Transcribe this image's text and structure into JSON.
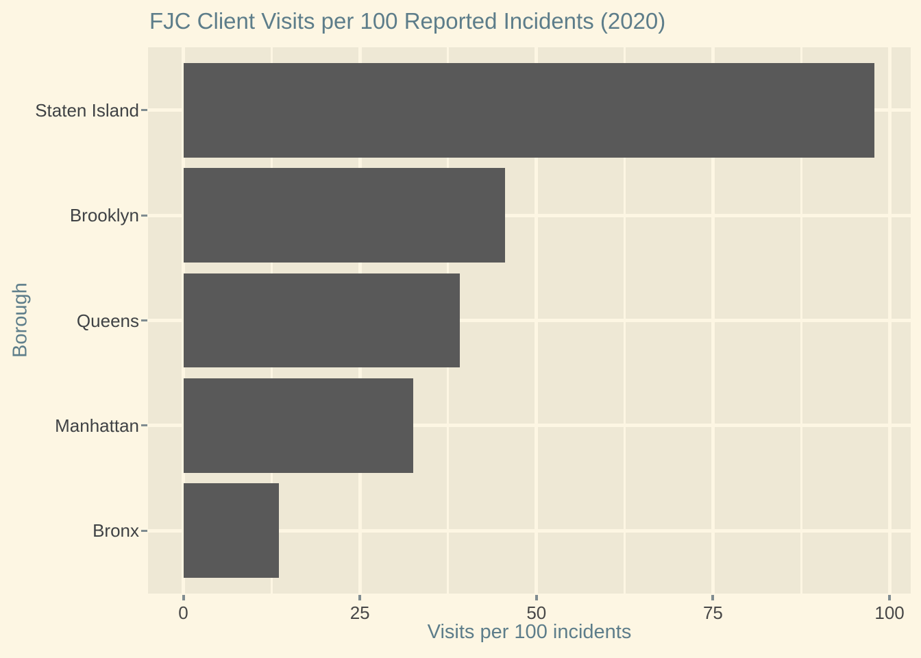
{
  "title": "FJC Client Visits per 100 Reported Incidents (2020)",
  "chart_data": {
    "type": "bar",
    "orientation": "horizontal",
    "title": "FJC Client Visits per 100 Reported Incidents (2020)",
    "xlabel": "Visits per 100 incidents",
    "ylabel": "Borough",
    "categories": [
      "Staten Island",
      "Brooklyn",
      "Queens",
      "Manhattan",
      "Bronx"
    ],
    "values": [
      97.9,
      45.6,
      39.2,
      32.6,
      13.5
    ],
    "xlim": [
      -5,
      103
    ],
    "x_ticks": [
      0,
      25,
      50,
      75,
      100
    ],
    "x_tick_labels": [
      "0",
      "25",
      "50",
      "75",
      "100"
    ],
    "x_minor_ticks": [
      12.5,
      37.5,
      62.5,
      87.5
    ],
    "grid": "on",
    "legend": "none",
    "bar_fill": "#595959",
    "panel_background": "#eee8d5",
    "plot_background": "#fdf6e3",
    "grid_color": "#fdf6e3",
    "title_color": "#5d7d8a",
    "axis_title_color": "#5d7d8a",
    "axis_text_color": "#454545",
    "tick_mark_color": "#7f8c91"
  }
}
